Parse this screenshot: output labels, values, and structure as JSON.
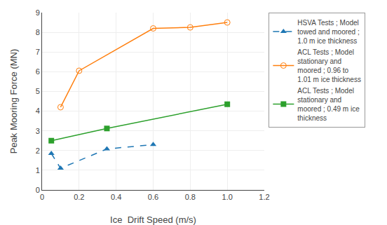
{
  "chart_data": {
    "type": "line",
    "xlabel": "Ice  Drift Speed (m/s)",
    "ylabel": "Peak Mooring Force (MN)",
    "series": [
      {
        "name": "HSVA Tests ; Model\ntowed and moored ;\n1.0 m ice thickness",
        "x": [
          0.05,
          0.1,
          0.35,
          0.6
        ],
        "values": [
          1.85,
          1.1,
          2.08,
          2.3
        ],
        "marker": "triangle-up",
        "line_style": "dash"
      },
      {
        "name": "ACL Tests ; Model\nstationary and\nmoored ; 0.96 to\n1.01 m ice thickness",
        "x": [
          0.1,
          0.2,
          0.6,
          0.8,
          1.0
        ],
        "values": [
          4.2,
          6.05,
          8.2,
          8.25,
          8.5
        ],
        "marker": "circle-open",
        "line_style": "solid"
      },
      {
        "name": "ACL Tests ; Model\nstationary and\nmoored ; 0.49 m ice\nthickness",
        "x": [
          0.05,
          0.35,
          1.0
        ],
        "values": [
          2.5,
          3.12,
          4.35
        ],
        "marker": "square",
        "line_style": "solid"
      }
    ],
    "xlim": [
      0,
      1.2
    ],
    "ylim": [
      0,
      9
    ],
    "xticks": [
      0,
      0.2,
      0.4,
      0.6,
      0.8,
      {
        "value": 1,
        "label": "1.0"
      },
      1.2
    ],
    "yticks": [
      0,
      1,
      2,
      3,
      4,
      5,
      6,
      7,
      8,
      9
    ],
    "grid": true
  }
}
